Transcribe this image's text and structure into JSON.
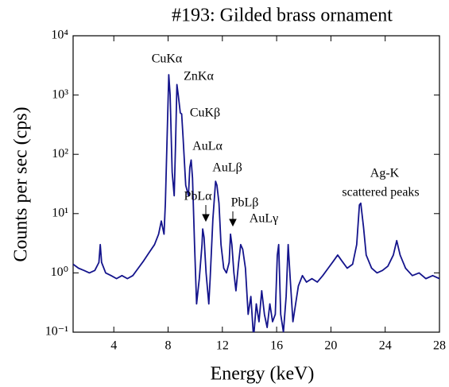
{
  "chart_data": {
    "type": "line",
    "title": "#193: Gilded brass ornament",
    "x_label": "Energy (keV)",
    "y_label": "Counts per sec (cps)",
    "log_y": true,
    "color": "#14148c",
    "xlim": [
      1,
      28
    ],
    "xticks": [
      4,
      8,
      12,
      16,
      20,
      24,
      28
    ],
    "ylim": [
      0.1,
      10000
    ],
    "yticks": [
      {
        "value": 0.1,
        "label": "10⁻¹"
      },
      {
        "value": 1,
        "label": "10⁰"
      },
      {
        "value": 10,
        "label": "10¹"
      },
      {
        "value": 100,
        "label": "10²"
      },
      {
        "value": 1000,
        "label": "10³"
      },
      {
        "value": 10000,
        "label": "10⁴"
      }
    ],
    "annotations": [
      "CuKα",
      "ZnKα",
      "CuKβ",
      "AuLα",
      "AuLβ",
      "PbLα",
      "PbLβ",
      "AuLγ",
      "Ag-K",
      "scattered peaks"
    ],
    "x": [
      1.0,
      1.4,
      1.8,
      2.2,
      2.6,
      2.9,
      3.0,
      3.1,
      3.4,
      3.8,
      4.2,
      4.6,
      5.0,
      5.4,
      5.8,
      6.2,
      6.6,
      7.0,
      7.3,
      7.5,
      7.7,
      7.8,
      7.95,
      8.05,
      8.15,
      8.3,
      8.45,
      8.55,
      8.65,
      8.75,
      8.9,
      9.0,
      9.1,
      9.3,
      9.5,
      9.6,
      9.7,
      9.8,
      9.95,
      10.1,
      10.3,
      10.5,
      10.55,
      10.65,
      10.8,
      11.0,
      11.1,
      11.3,
      11.5,
      11.6,
      11.75,
      11.9,
      12.1,
      12.3,
      12.5,
      12.6,
      12.7,
      12.85,
      13.0,
      13.2,
      13.35,
      13.5,
      13.7,
      13.9,
      14.1,
      14.3,
      14.5,
      14.7,
      14.9,
      15.1,
      15.3,
      15.5,
      15.7,
      15.9,
      16.05,
      16.15,
      16.3,
      16.5,
      16.7,
      16.85,
      17.0,
      17.2,
      17.4,
      17.6,
      17.9,
      18.2,
      18.6,
      19.0,
      19.4,
      19.8,
      20.2,
      20.5,
      20.8,
      21.2,
      21.6,
      21.9,
      22.1,
      22.2,
      22.4,
      22.6,
      23.0,
      23.4,
      23.8,
      24.2,
      24.6,
      24.85,
      25.1,
      25.5,
      26.0,
      26.5,
      27.0,
      27.5,
      28.0
    ],
    "values": [
      1.4,
      1.2,
      1.1,
      1.0,
      1.1,
      1.5,
      3.0,
      1.5,
      1.0,
      0.9,
      0.8,
      0.9,
      0.8,
      0.9,
      1.2,
      1.6,
      2.2,
      3.0,
      4.5,
      7.5,
      4.5,
      15,
      300,
      2200,
      1000,
      50,
      20,
      150,
      1500,
      1000,
      500,
      480,
      200,
      30,
      20,
      60,
      80,
      40,
      3,
      0.3,
      0.8,
      3,
      5.5,
      4,
      1,
      0.3,
      0.8,
      8,
      35,
      30,
      15,
      3,
      1.2,
      1,
      1.5,
      4.5,
      3,
      1,
      0.5,
      1.5,
      3,
      2.5,
      1.2,
      0.2,
      0.4,
      0.08,
      0.3,
      0.15,
      0.5,
      0.2,
      0.12,
      0.3,
      0.15,
      0.2,
      2,
      3,
      0.2,
      0.1,
      0.4,
      3,
      0.8,
      0.15,
      0.3,
      0.6,
      0.9,
      0.7,
      0.8,
      0.7,
      0.9,
      1.2,
      1.6,
      2.0,
      1.6,
      1.2,
      1.4,
      3,
      14,
      15,
      6,
      2,
      1.2,
      1.0,
      1.1,
      1.3,
      2.0,
      3.5,
      2.0,
      1.2,
      0.9,
      1.0,
      0.8,
      0.9,
      0.8
    ]
  }
}
